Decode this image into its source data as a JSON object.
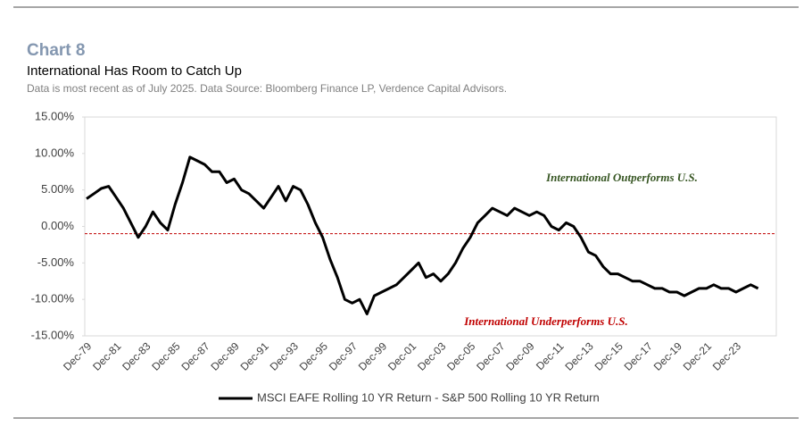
{
  "chart_data": {
    "type": "line",
    "title": "Chart 8",
    "subtitle": "International Has Room to Catch Up",
    "source": "Data is most recent as of July 2025. Data Source: Bloomberg Finance LP, Verdence Capital Advisors.",
    "categories": [
      "Dec-79",
      null,
      null,
      null,
      "Dec-81",
      null,
      null,
      null,
      "Dec-83",
      null,
      null,
      null,
      "Dec-85",
      null,
      null,
      null,
      "Dec-87",
      null,
      null,
      null,
      "Dec-89",
      null,
      null,
      null,
      "Dec-91",
      null,
      null,
      null,
      "Dec-93",
      null,
      null,
      null,
      "Dec-95",
      null,
      null,
      null,
      "Dec-97",
      null,
      null,
      null,
      "Dec-99",
      null,
      null,
      null,
      "Dec-01",
      null,
      null,
      null,
      "Dec-03",
      null,
      null,
      null,
      "Dec-05",
      null,
      null,
      null,
      "Dec-07",
      null,
      null,
      null,
      "Dec-09",
      null,
      null,
      null,
      "Dec-11",
      null,
      null,
      null,
      "Dec-13",
      null,
      null,
      null,
      "Dec-15",
      null,
      null,
      null,
      "Dec-17",
      null,
      null,
      null,
      "Dec-19",
      null,
      null,
      null,
      "Dec-21",
      null,
      null,
      null,
      "Dec-23",
      null,
      null,
      null
    ],
    "series": [
      {
        "name": "MSCI EAFE Rolling 10 YR Return - S&P 500 Rolling 10 YR Return",
        "color": "#000000",
        "values": [
          3.8,
          4.5,
          5.2,
          5.5,
          4.0,
          2.5,
          0.5,
          -1.5,
          0.0,
          2.0,
          0.5,
          -0.5,
          3.0,
          6.0,
          9.5,
          9.0,
          8.5,
          7.5,
          7.5,
          6.0,
          6.5,
          5.0,
          4.5,
          3.5,
          2.5,
          4.0,
          5.5,
          3.5,
          5.5,
          5.0,
          3.0,
          0.5,
          -1.5,
          -4.5,
          -7.0,
          -10.0,
          -10.5,
          -10.0,
          -12.0,
          -9.5,
          -9.0,
          -8.5,
          -8.0,
          -7.0,
          -6.0,
          -5.0,
          -7.0,
          -6.5,
          -7.5,
          -6.5,
          -5.0,
          -3.0,
          -1.5,
          0.5,
          1.5,
          2.5,
          2.0,
          1.5,
          2.5,
          2.0,
          1.5,
          2.0,
          1.5,
          0.0,
          -0.5,
          0.5,
          0.0,
          -1.5,
          -3.5,
          -4.0,
          -5.5,
          -6.5,
          -6.5,
          -7.0,
          -7.5,
          -7.5,
          -8.0,
          -8.5,
          -8.5,
          -9.0,
          -9.0,
          -9.5,
          -9.0,
          -8.5,
          -8.5,
          -8.0,
          -8.5,
          -8.5,
          -9.0,
          -8.5,
          -8.0,
          -8.5
        ]
      }
    ],
    "reference_line": {
      "value": -1.0,
      "color": "#c00000"
    },
    "ylim": [
      -15,
      15
    ],
    "yticks": [
      {
        "value": -15,
        "label": "-15.00%"
      },
      {
        "value": -10,
        "label": "-10.00%"
      },
      {
        "value": -5,
        "label": "-5.00%"
      },
      {
        "value": 0,
        "label": "0.00%"
      },
      {
        "value": 5,
        "label": "5.00%"
      },
      {
        "value": 10,
        "label": "10.00%"
      },
      {
        "value": 15,
        "label": "15.00%"
      }
    ],
    "grid": false,
    "legend": "bottom",
    "annotations": [
      {
        "text": "International Outperforms U.S.",
        "color": "#375623"
      },
      {
        "text": "International Underperforms U.S.",
        "color": "#c00000"
      }
    ]
  }
}
